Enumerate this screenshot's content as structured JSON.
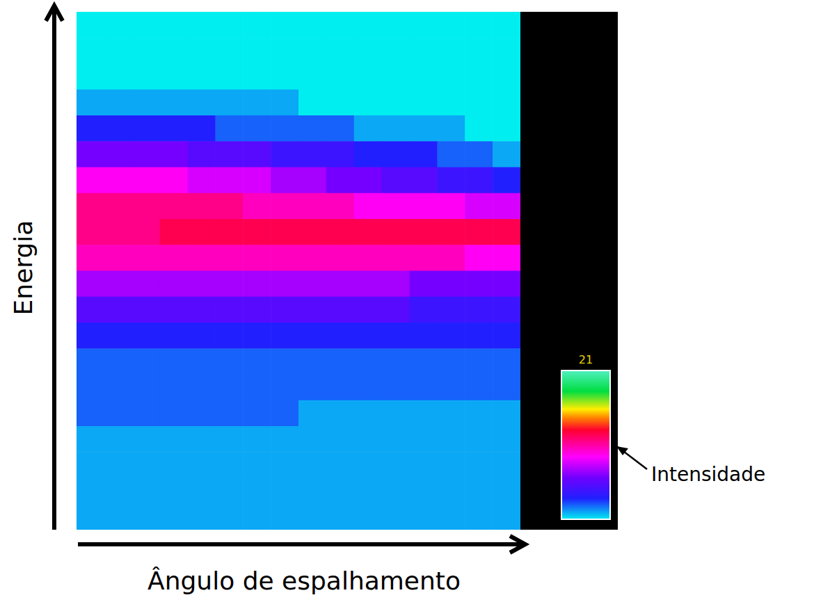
{
  "chart_data": {
    "type": "heatmap",
    "xlabel": "Ângulo de espalhamento",
    "ylabel": "Energia",
    "tick_labels": false,
    "colorbar": {
      "label": "Intensidade",
      "range": [
        0,
        21
      ],
      "ticks": [
        21
      ]
    },
    "cells": [
      [
        0,
        0,
        0,
        0,
        0,
        0,
        0,
        0,
        0,
        0,
        0,
        0,
        0,
        0,
        0,
        0
      ],
      [
        0,
        0,
        0,
        0,
        0,
        0,
        0,
        0,
        0,
        0,
        0,
        0,
        0,
        0,
        0,
        0
      ],
      [
        0,
        0,
        0,
        0,
        0,
        0,
        0,
        0,
        0,
        0,
        0,
        0,
        0,
        0,
        0,
        0
      ],
      [
        1,
        1,
        1,
        1,
        1,
        1,
        1,
        1,
        0,
        0,
        0,
        0,
        0,
        0,
        0,
        0
      ],
      [
        3,
        3,
        3,
        3,
        3,
        2,
        2,
        2,
        2,
        2,
        1,
        1,
        1,
        1,
        0,
        0
      ],
      [
        6,
        6,
        6,
        6,
        5,
        5,
        5,
        4,
        4,
        4,
        3,
        3,
        3,
        2,
        2,
        1
      ],
      [
        9,
        9,
        9,
        9,
        8,
        8,
        8,
        7,
        7,
        6,
        6,
        5,
        5,
        4,
        4,
        3
      ],
      [
        11,
        11,
        11,
        11,
        11,
        11,
        10,
        10,
        10,
        10,
        9,
        9,
        9,
        9,
        8,
        8
      ],
      [
        11,
        11,
        11,
        12,
        12,
        12,
        12,
        12,
        12,
        12,
        12,
        12,
        12,
        12,
        12,
        12
      ],
      [
        10,
        10,
        10,
        10,
        10,
        10,
        10,
        10,
        10,
        10,
        10,
        10,
        10,
        10,
        9,
        9
      ],
      [
        7,
        7,
        7,
        7,
        7,
        7,
        7,
        7,
        7,
        7,
        7,
        7,
        6,
        6,
        6,
        6
      ],
      [
        5,
        5,
        5,
        5,
        5,
        5,
        5,
        5,
        5,
        5,
        5,
        5,
        4,
        4,
        4,
        4
      ],
      [
        3,
        3,
        3,
        3,
        3,
        3,
        3,
        3,
        3,
        3,
        3,
        3,
        3,
        3,
        3,
        3
      ],
      [
        2,
        2,
        2,
        2,
        2,
        2,
        2,
        2,
        2,
        2,
        2,
        2,
        2,
        2,
        2,
        2
      ],
      [
        2,
        2,
        2,
        2,
        2,
        2,
        2,
        2,
        2,
        2,
        2,
        2,
        2,
        2,
        2,
        2
      ],
      [
        2,
        2,
        2,
        2,
        2,
        2,
        2,
        2,
        1,
        1,
        1,
        1,
        1,
        1,
        1,
        1
      ],
      [
        1,
        1,
        1,
        1,
        1,
        1,
        1,
        1,
        1,
        1,
        1,
        1,
        1,
        1,
        1,
        1
      ],
      [
        1,
        1,
        1,
        1,
        1,
        1,
        1,
        1,
        1,
        1,
        1,
        1,
        1,
        1,
        1,
        1
      ],
      [
        1,
        1,
        1,
        1,
        1,
        1,
        1,
        1,
        1,
        1,
        1,
        1,
        1,
        1,
        1,
        1
      ],
      [
        1,
        1,
        1,
        1,
        1,
        1,
        1,
        1,
        1,
        1,
        1,
        1,
        1,
        1,
        1,
        1
      ]
    ]
  }
}
